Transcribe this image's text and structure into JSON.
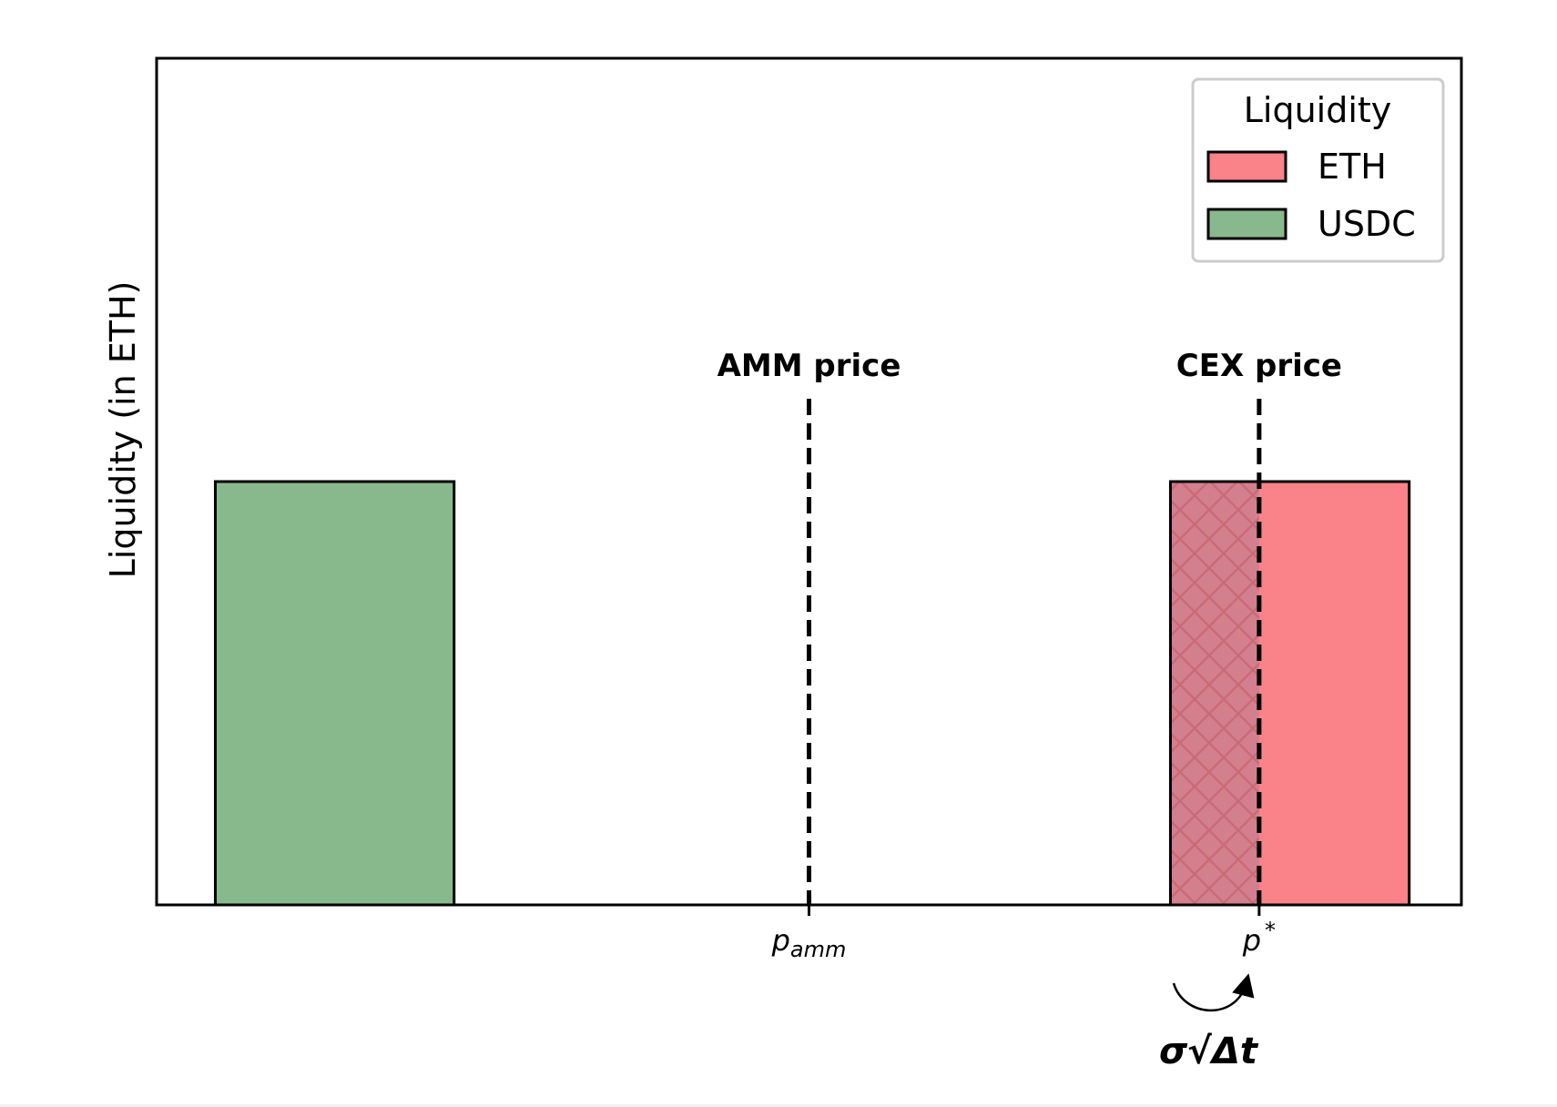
{
  "chart_data": {
    "type": "bar",
    "title": "",
    "xlabel": "",
    "ylabel": "Liquidity (in ETH)",
    "xlim": [
      0,
      10
    ],
    "ylim": [
      0,
      2
    ],
    "grid": false,
    "legend_position": "top-right",
    "bars": [
      {
        "series": "USDC",
        "x_start": 0.45,
        "x_end": 2.28,
        "value": 1.0,
        "color": "#88b98c"
      },
      {
        "series": "ETH",
        "x_start": 7.77,
        "x_end": 9.6,
        "value": 1.0,
        "color": "#fa8289"
      }
    ],
    "hatched_region": {
      "x_start": 7.77,
      "x_end": 8.45,
      "value": 1.0,
      "color": "#d47f8e",
      "hatch_color": "#c96b76"
    },
    "vlines": [
      {
        "x": 5.0,
        "label": "AMM price",
        "tick_label": "p",
        "tick_sub": "amm"
      },
      {
        "x": 8.45,
        "label": "CEX price",
        "tick_label": "p",
        "tick_sup": "*"
      }
    ],
    "legend": {
      "title": "Liquidity",
      "entries": [
        {
          "label": "ETH",
          "color": "#fa8289"
        },
        {
          "label": "USDC",
          "color": "#88b98c"
        }
      ]
    },
    "annotation": {
      "text": "σ√Δt"
    }
  }
}
